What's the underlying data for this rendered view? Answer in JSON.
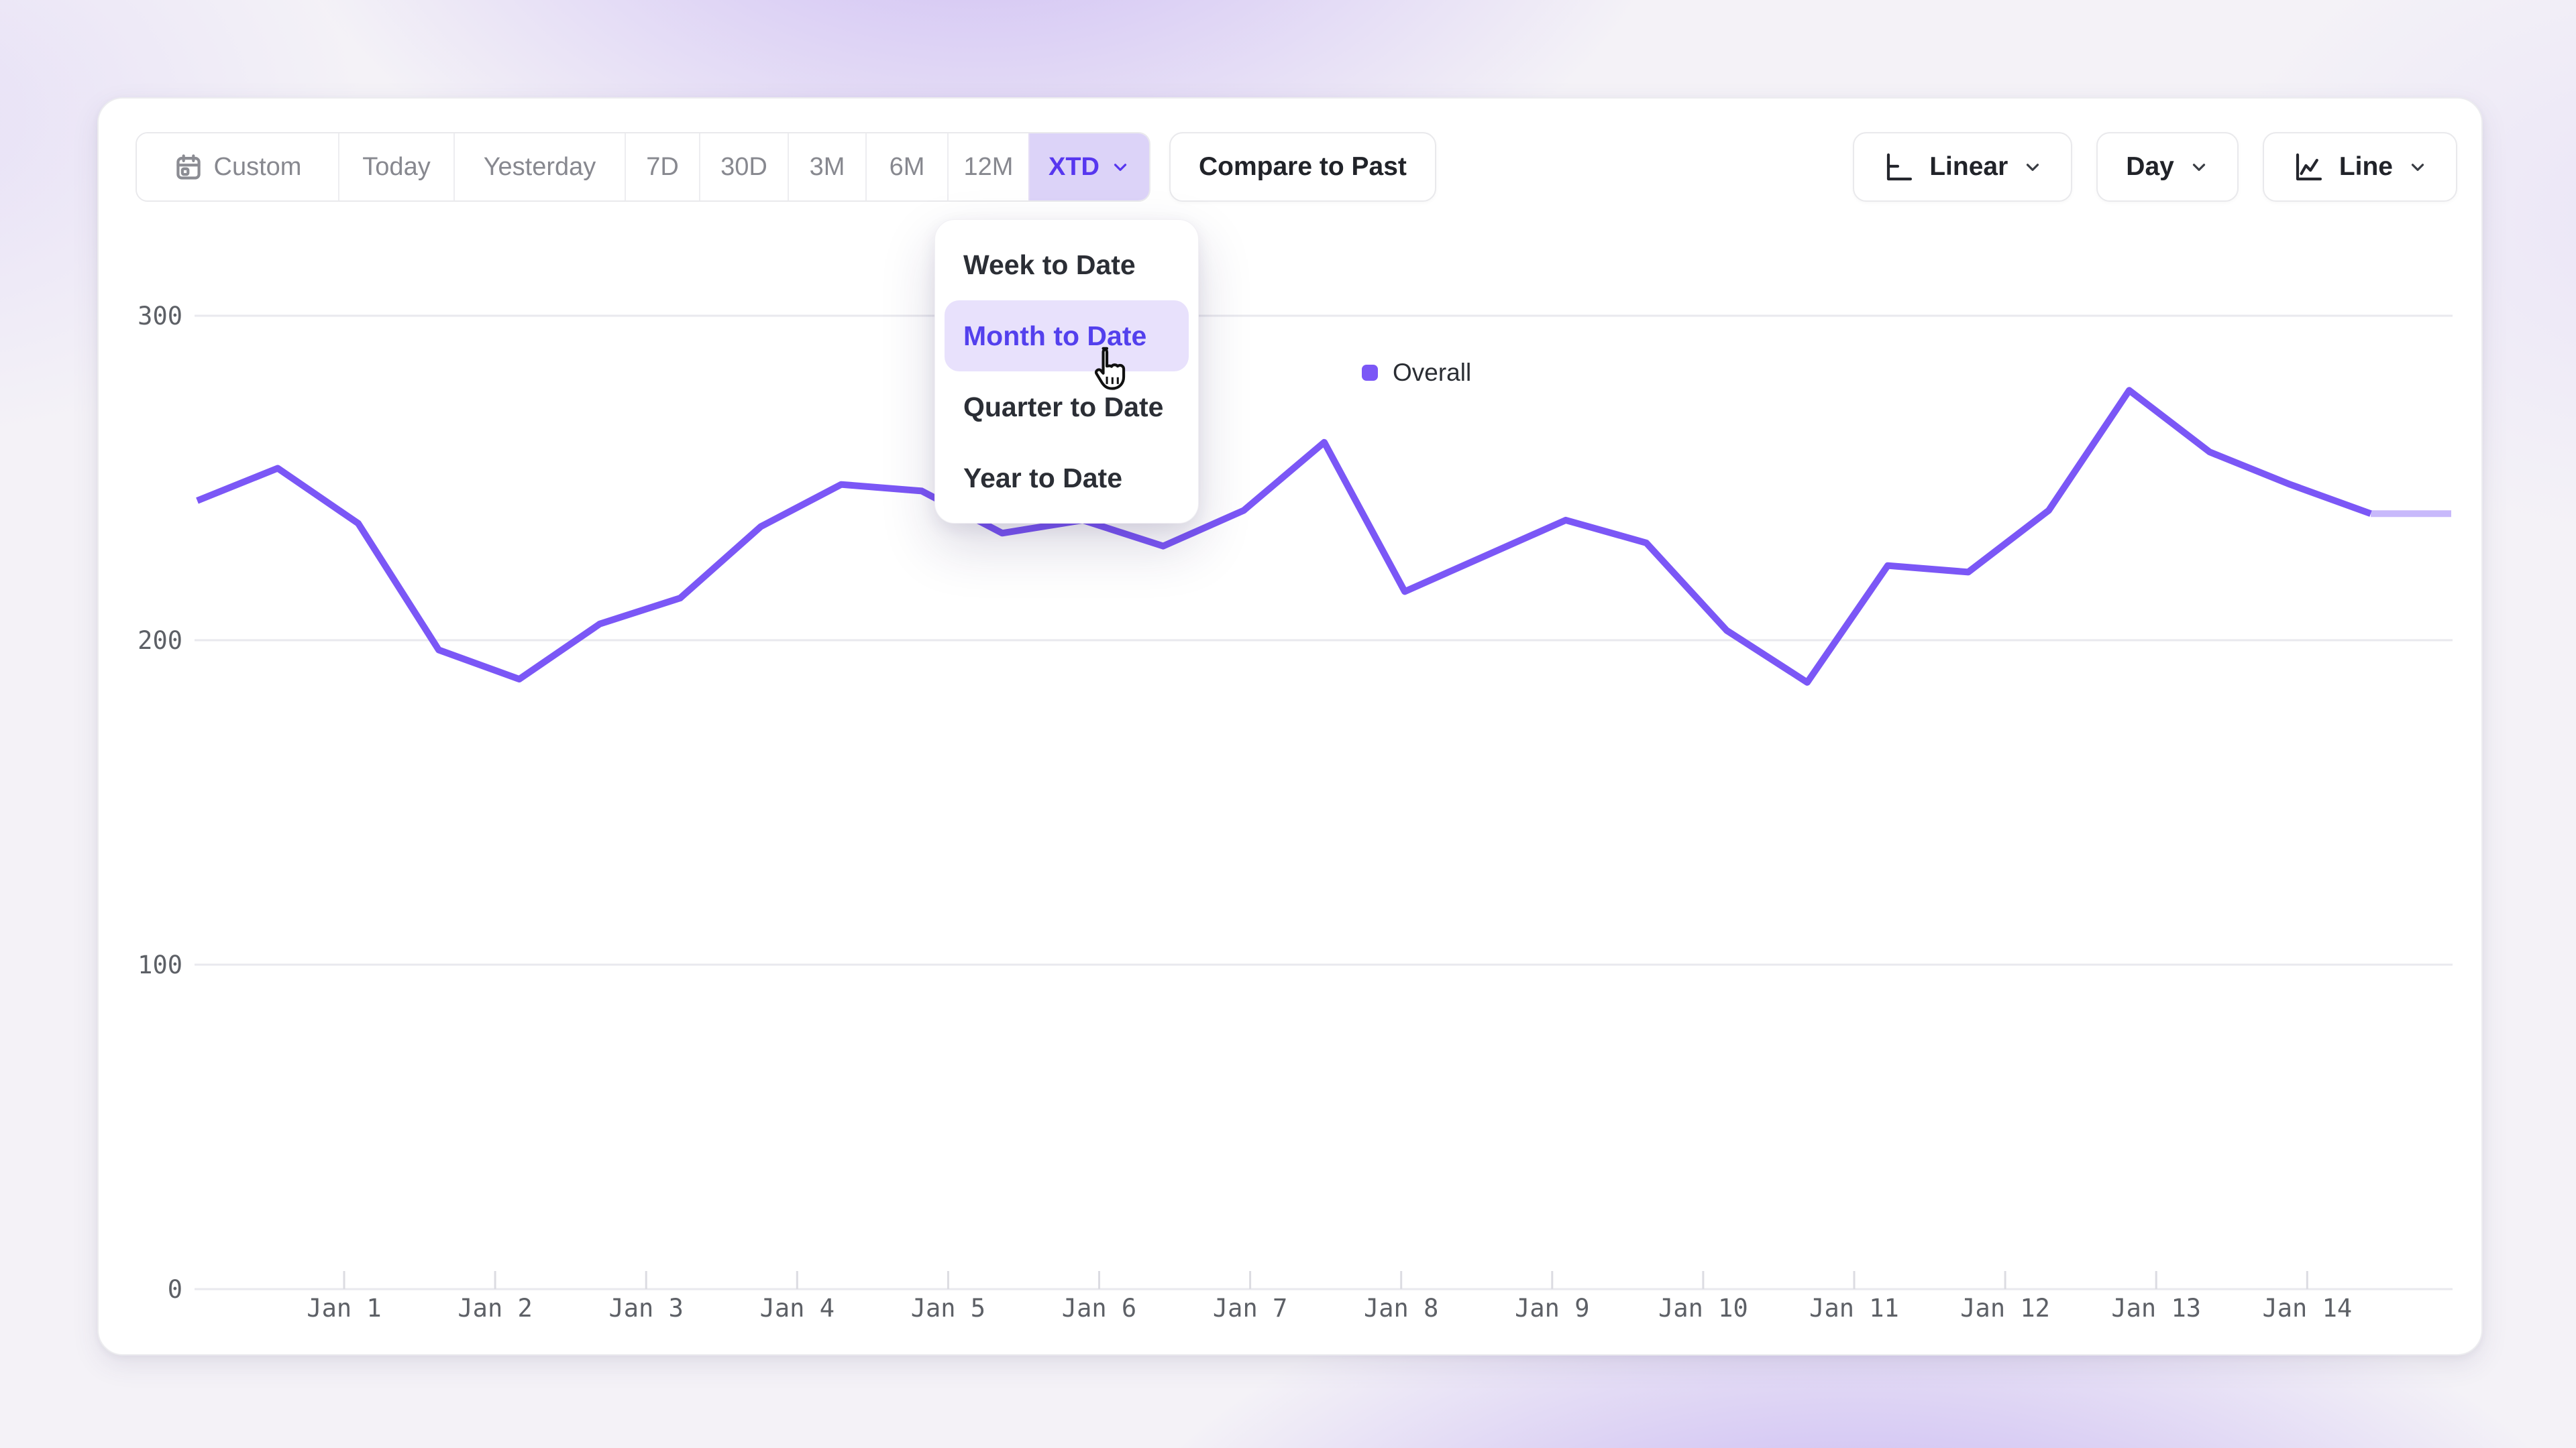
{
  "toolbar": {
    "date_ranges": [
      "Custom",
      "Today",
      "Yesterday",
      "7D",
      "30D",
      "3M",
      "6M",
      "12M",
      "XTD"
    ],
    "selected_range": "XTD",
    "compare_label": "Compare to Past",
    "scale_label": "Linear",
    "granularity_label": "Day",
    "chart_type_label": "Line"
  },
  "dropdown": {
    "items": [
      "Week to Date",
      "Month to Date",
      "Quarter to Date",
      "Year to Date"
    ],
    "selected_index": 1
  },
  "legend": {
    "label": "Overall",
    "color": "#7b57f6"
  },
  "chart_data": {
    "type": "line",
    "title": "",
    "xlabel": "",
    "ylabel": "",
    "series": [
      {
        "name": "Overall",
        "color": "#7b57f6",
        "values": [
          243,
          253,
          236,
          197,
          188,
          205,
          213,
          235,
          248,
          246,
          233,
          237,
          229,
          240,
          261,
          215,
          226,
          237,
          230,
          203,
          187,
          223,
          221,
          240,
          277,
          258,
          248,
          239,
          239
        ],
        "faded_tail_points": 2,
        "points_per_day": 2
      }
    ],
    "x_ticks": [
      "Jan 1",
      "Jan 2",
      "Jan 3",
      "Jan 4",
      "Jan 5",
      "Jan 6",
      "Jan 7",
      "Jan 8",
      "Jan 9",
      "Jan 10",
      "Jan 11",
      "Jan 12",
      "Jan 13",
      "Jan 14"
    ],
    "y_ticks": [
      0,
      100,
      200,
      300
    ],
    "ylim": [
      0,
      300
    ],
    "grid": "horizontal",
    "legend_position": "top-center",
    "colors": {
      "grid": "#e9e9ee",
      "tick": "#dcdce2",
      "axis_text": "#5d6066"
    }
  }
}
